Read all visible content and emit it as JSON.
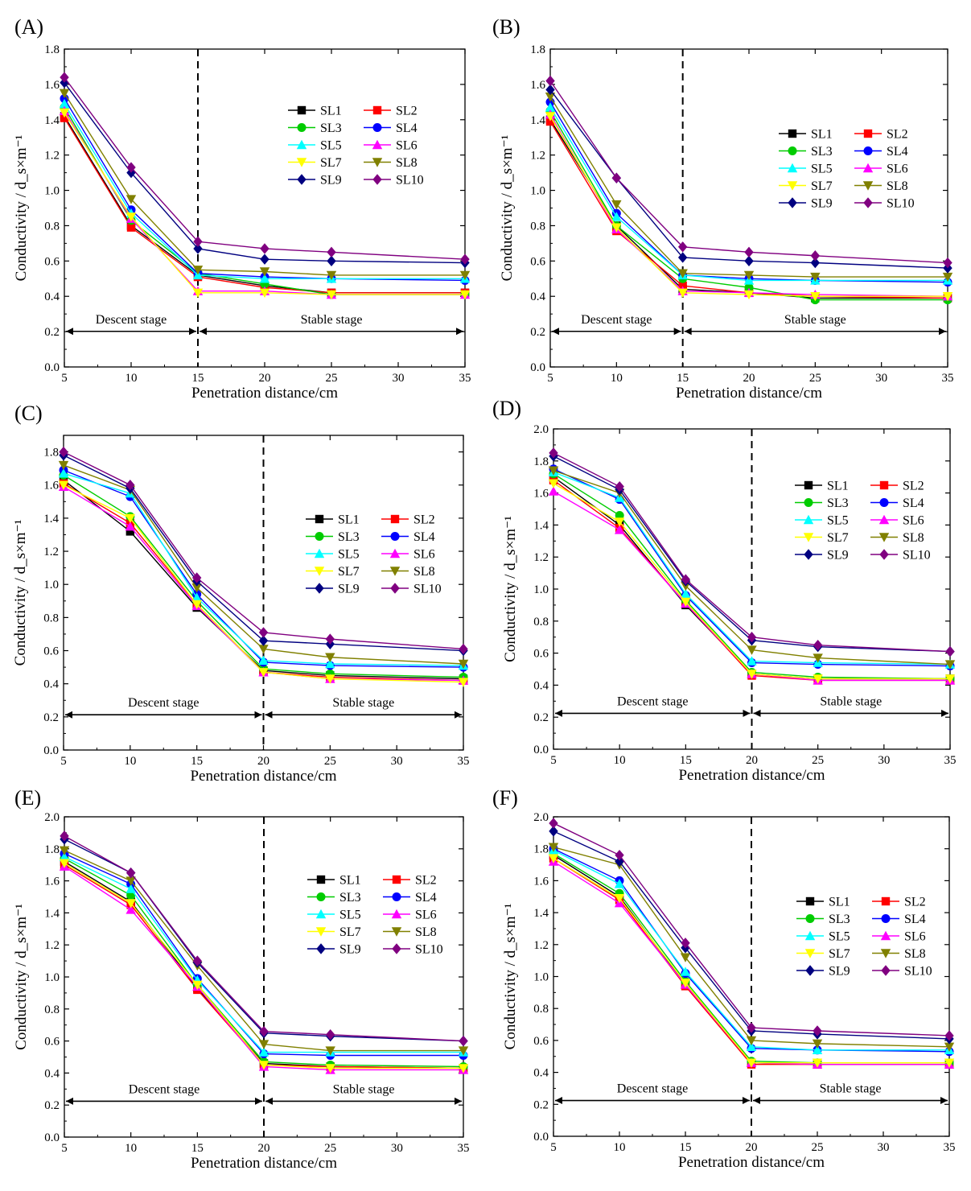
{
  "figure": {
    "x_values": [
      5,
      10,
      15,
      20,
      25,
      30,
      35
    ],
    "x_ticks": [
      "5",
      "10",
      "15",
      "20",
      "25",
      "30",
      "35"
    ],
    "xlabel": "Penetration distance/cm",
    "ylabel": "Conductivity / d_s×m⁻¹",
    "stage_left": "Descent stage",
    "stage_right": "Stable  stage"
  },
  "series_styles": [
    {
      "name": "SL1",
      "color": "#000000",
      "marker": "square"
    },
    {
      "name": "SL2",
      "color": "#ff0000",
      "marker": "square"
    },
    {
      "name": "SL3",
      "color": "#00cc00",
      "marker": "circle"
    },
    {
      "name": "SL4",
      "color": "#0000ff",
      "marker": "circle"
    },
    {
      "name": "SL5",
      "color": "#00ffff",
      "marker": "triangle-up"
    },
    {
      "name": "SL6",
      "color": "#ff00ff",
      "marker": "triangle-up"
    },
    {
      "name": "SL7",
      "color": "#ffff00",
      "marker": "triangle-down"
    },
    {
      "name": "SL8",
      "color": "#808000",
      "marker": "triangle-down"
    },
    {
      "name": "SL9",
      "color": "#000080",
      "marker": "diamond"
    },
    {
      "name": "SL10",
      "color": "#800080",
      "marker": "diamond"
    }
  ],
  "chart_data": [
    {
      "panel": "(A)",
      "type": "line",
      "ylim": [
        0,
        1.8
      ],
      "y_ticks": [
        "0.0",
        "0.2",
        "0.4",
        "0.6",
        "0.8",
        "1.0",
        "1.2",
        "1.4",
        "1.6",
        "1.8"
      ],
      "stage_boundary": 15,
      "legend_position": "upper-center",
      "x": [
        5,
        10,
        15,
        20,
        25,
        35
      ],
      "series": [
        {
          "name": "SL1",
          "values": [
            1.42,
            0.8,
            0.52,
            0.46,
            0.42,
            0.42
          ]
        },
        {
          "name": "SL2",
          "values": [
            1.41,
            0.79,
            0.51,
            0.45,
            0.42,
            0.42
          ]
        },
        {
          "name": "SL3",
          "values": [
            1.47,
            0.83,
            0.53,
            0.47,
            0.41,
            0.41
          ]
        },
        {
          "name": "SL4",
          "values": [
            1.52,
            0.89,
            0.53,
            0.51,
            0.5,
            0.49
          ]
        },
        {
          "name": "SL5",
          "values": [
            1.49,
            0.87,
            0.52,
            0.5,
            0.5,
            0.5
          ]
        },
        {
          "name": "SL6",
          "values": [
            1.45,
            0.84,
            0.43,
            0.43,
            0.41,
            0.41
          ]
        },
        {
          "name": "SL7",
          "values": [
            1.44,
            0.85,
            0.42,
            0.42,
            0.41,
            0.41
          ]
        },
        {
          "name": "SL8",
          "values": [
            1.55,
            0.95,
            0.55,
            0.54,
            0.52,
            0.52
          ]
        },
        {
          "name": "SL9",
          "values": [
            1.61,
            1.1,
            0.67,
            0.61,
            0.6,
            0.59
          ]
        },
        {
          "name": "SL10",
          "values": [
            1.64,
            1.13,
            0.71,
            0.67,
            0.65,
            0.61
          ]
        }
      ]
    },
    {
      "panel": "(B)",
      "type": "line",
      "ylim": [
        0,
        1.8
      ],
      "y_ticks": [
        "0.0",
        "0.2",
        "0.4",
        "0.6",
        "0.8",
        "1.0",
        "1.2",
        "1.4",
        "1.6",
        "1.8"
      ],
      "stage_boundary": 15,
      "legend_position": "right-center",
      "x": [
        5,
        10,
        15,
        20,
        25,
        35
      ],
      "series": [
        {
          "name": "SL1",
          "values": [
            1.4,
            0.8,
            0.44,
            0.42,
            0.39,
            0.39
          ]
        },
        {
          "name": "SL2",
          "values": [
            1.39,
            0.77,
            0.46,
            0.42,
            0.4,
            0.39
          ]
        },
        {
          "name": "SL3",
          "values": [
            1.45,
            0.8,
            0.5,
            0.45,
            0.38,
            0.38
          ]
        },
        {
          "name": "SL4",
          "values": [
            1.5,
            0.87,
            0.52,
            0.5,
            0.49,
            0.48
          ]
        },
        {
          "name": "SL5",
          "values": [
            1.47,
            0.85,
            0.52,
            0.49,
            0.49,
            0.49
          ]
        },
        {
          "name": "SL6",
          "values": [
            1.43,
            0.78,
            0.43,
            0.42,
            0.41,
            0.4
          ]
        },
        {
          "name": "SL7",
          "values": [
            1.42,
            0.79,
            0.42,
            0.41,
            0.4,
            0.4
          ]
        },
        {
          "name": "SL8",
          "values": [
            1.53,
            0.92,
            0.53,
            0.52,
            0.51,
            0.51
          ]
        },
        {
          "name": "SL9",
          "values": [
            1.57,
            1.07,
            0.62,
            0.6,
            0.59,
            0.56
          ]
        },
        {
          "name": "SL10",
          "values": [
            1.62,
            1.07,
            0.68,
            0.65,
            0.63,
            0.59
          ]
        }
      ]
    },
    {
      "panel": "(C)",
      "type": "line",
      "ylim": [
        0,
        1.9
      ],
      "y_ticks": [
        "0.0",
        "0.2",
        "0.4",
        "0.6",
        "0.8",
        "1.0",
        "1.2",
        "1.4",
        "1.6",
        "1.8"
      ],
      "stage_boundary": 20,
      "legend_position": "right-center",
      "x": [
        5,
        10,
        15,
        20,
        25,
        35
      ],
      "series": [
        {
          "name": "SL1",
          "values": [
            1.63,
            1.32,
            0.86,
            0.48,
            0.45,
            0.43
          ]
        },
        {
          "name": "SL2",
          "values": [
            1.61,
            1.37,
            0.88,
            0.47,
            0.44,
            0.42
          ]
        },
        {
          "name": "SL3",
          "values": [
            1.66,
            1.41,
            0.9,
            0.49,
            0.46,
            0.44
          ]
        },
        {
          "name": "SL4",
          "values": [
            1.69,
            1.53,
            0.94,
            0.53,
            0.51,
            0.5
          ]
        },
        {
          "name": "SL5",
          "values": [
            1.67,
            1.55,
            0.92,
            0.54,
            0.52,
            0.51
          ]
        },
        {
          "name": "SL6",
          "values": [
            1.59,
            1.35,
            0.87,
            0.47,
            0.43,
            0.42
          ]
        },
        {
          "name": "SL7",
          "values": [
            1.6,
            1.4,
            0.88,
            0.47,
            0.43,
            0.41
          ]
        },
        {
          "name": "SL8",
          "values": [
            1.72,
            1.57,
            0.98,
            0.61,
            0.56,
            0.52
          ]
        },
        {
          "name": "SL9",
          "values": [
            1.78,
            1.58,
            1.02,
            0.66,
            0.64,
            0.6
          ]
        },
        {
          "name": "SL10",
          "values": [
            1.8,
            1.6,
            1.04,
            0.71,
            0.67,
            0.61
          ]
        }
      ]
    },
    {
      "panel": "(D)",
      "type": "line",
      "ylim": [
        0,
        2.0
      ],
      "y_ticks": [
        "0.0",
        "0.2",
        "0.4",
        "0.6",
        "0.8",
        "1.0",
        "1.2",
        "1.4",
        "1.6",
        "1.8",
        "2.0"
      ],
      "stage_boundary": 20,
      "legend_position": "upper-right",
      "x": [
        5,
        10,
        15,
        20,
        25,
        35
      ],
      "series": [
        {
          "name": "SL1",
          "values": [
            1.7,
            1.4,
            0.9,
            0.47,
            0.44,
            0.44
          ]
        },
        {
          "name": "SL2",
          "values": [
            1.68,
            1.38,
            0.91,
            0.46,
            0.43,
            0.43
          ]
        },
        {
          "name": "SL3",
          "values": [
            1.72,
            1.46,
            0.93,
            0.48,
            0.45,
            0.44
          ]
        },
        {
          "name": "SL4",
          "values": [
            1.75,
            1.56,
            0.96,
            0.54,
            0.53,
            0.52
          ]
        },
        {
          "name": "SL5",
          "values": [
            1.73,
            1.57,
            0.97,
            0.55,
            0.54,
            0.53
          ]
        },
        {
          "name": "SL6",
          "values": [
            1.61,
            1.37,
            0.91,
            0.47,
            0.43,
            0.43
          ]
        },
        {
          "name": "SL7",
          "values": [
            1.66,
            1.42,
            0.92,
            0.47,
            0.44,
            0.44
          ]
        },
        {
          "name": "SL8",
          "values": [
            1.74,
            1.6,
            1.02,
            0.62,
            0.57,
            0.53
          ]
        },
        {
          "name": "SL9",
          "values": [
            1.83,
            1.62,
            1.05,
            0.68,
            0.64,
            0.61
          ]
        },
        {
          "name": "SL10",
          "values": [
            1.85,
            1.64,
            1.06,
            0.7,
            0.65,
            0.61
          ]
        }
      ]
    },
    {
      "panel": "(E)",
      "type": "line",
      "ylim": [
        0,
        2.0
      ],
      "y_ticks": [
        "0.0",
        "0.2",
        "0.4",
        "0.6",
        "0.8",
        "1.0",
        "1.2",
        "1.4",
        "1.6",
        "1.8",
        "2.0"
      ],
      "stage_boundary": 20,
      "legend_position": "right-center",
      "x": [
        5,
        10,
        15,
        20,
        25,
        35
      ],
      "series": [
        {
          "name": "SL1",
          "values": [
            1.72,
            1.47,
            0.93,
            0.46,
            0.44,
            0.43
          ]
        },
        {
          "name": "SL2",
          "values": [
            1.7,
            1.45,
            0.92,
            0.45,
            0.44,
            0.43
          ]
        },
        {
          "name": "SL3",
          "values": [
            1.74,
            1.51,
            0.95,
            0.47,
            0.45,
            0.44
          ]
        },
        {
          "name": "SL4",
          "values": [
            1.77,
            1.58,
            0.99,
            0.52,
            0.51,
            0.51
          ]
        },
        {
          "name": "SL5",
          "values": [
            1.75,
            1.55,
            0.98,
            0.53,
            0.53,
            0.53
          ]
        },
        {
          "name": "SL6",
          "values": [
            1.69,
            1.42,
            0.94,
            0.44,
            0.42,
            0.42
          ]
        },
        {
          "name": "SL7",
          "values": [
            1.71,
            1.46,
            0.95,
            0.45,
            0.43,
            0.43
          ]
        },
        {
          "name": "SL8",
          "values": [
            1.79,
            1.6,
            1.07,
            0.58,
            0.54,
            0.54
          ]
        },
        {
          "name": "SL9",
          "values": [
            1.86,
            1.65,
            1.09,
            0.65,
            0.63,
            0.6
          ]
        },
        {
          "name": "SL10",
          "values": [
            1.88,
            1.65,
            1.1,
            0.66,
            0.64,
            0.6
          ]
        }
      ]
    },
    {
      "panel": "(F)",
      "type": "line",
      "ylim": [
        0,
        2.0
      ],
      "y_ticks": [
        "0.0",
        "0.2",
        "0.4",
        "0.6",
        "0.8",
        "1.0",
        "1.2",
        "1.4",
        "1.6",
        "1.8",
        "2.0"
      ],
      "stage_boundary": 20,
      "legend_position": "right-center",
      "x": [
        5,
        10,
        15,
        20,
        25,
        35
      ],
      "series": [
        {
          "name": "SL1",
          "values": [
            1.76,
            1.5,
            0.95,
            0.46,
            0.45,
            0.45
          ]
        },
        {
          "name": "SL2",
          "values": [
            1.74,
            1.48,
            0.94,
            0.45,
            0.45,
            0.45
          ]
        },
        {
          "name": "SL3",
          "values": [
            1.77,
            1.52,
            0.97,
            0.47,
            0.46,
            0.46
          ]
        },
        {
          "name": "SL4",
          "values": [
            1.8,
            1.6,
            1.02,
            0.55,
            0.54,
            0.53
          ]
        },
        {
          "name": "SL5",
          "values": [
            1.79,
            1.58,
            1.03,
            0.56,
            0.54,
            0.54
          ]
        },
        {
          "name": "SL6",
          "values": [
            1.72,
            1.46,
            0.95,
            0.46,
            0.45,
            0.45
          ]
        },
        {
          "name": "SL7",
          "values": [
            1.74,
            1.49,
            0.96,
            0.46,
            0.46,
            0.46
          ]
        },
        {
          "name": "SL8",
          "values": [
            1.81,
            1.7,
            1.12,
            0.6,
            0.58,
            0.56
          ]
        },
        {
          "name": "SL9",
          "values": [
            1.91,
            1.72,
            1.18,
            0.66,
            0.64,
            0.61
          ]
        },
        {
          "name": "SL10",
          "values": [
            1.96,
            1.76,
            1.21,
            0.68,
            0.66,
            0.63
          ]
        }
      ]
    }
  ]
}
